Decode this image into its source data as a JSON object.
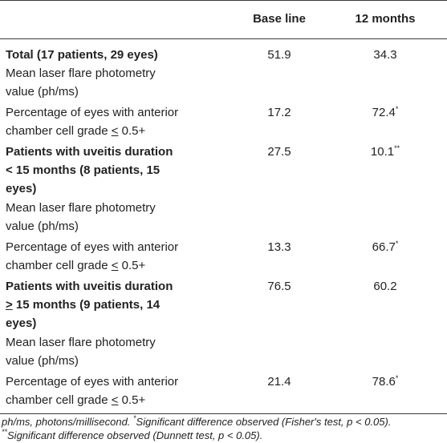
{
  "header": {
    "col1": "Base line",
    "col2": "12 months"
  },
  "rows": [
    {
      "label_lines": [
        "Total (17 patients, 29 eyes)"
      ],
      "bold": true,
      "v1": "51.9",
      "v2": "34.3"
    },
    {
      "label_lines": [
        "Mean laser flare photometry",
        "value (ph/ms)"
      ],
      "bold": false,
      "v1": "",
      "v2": ""
    },
    {
      "label_lines": [
        "Percentage of eyes with anterior",
        "chamber cell grade ≤ 0.5+"
      ],
      "bold": false,
      "v1": "17.2",
      "v2": "72.4",
      "v2_mark": "*"
    },
    {
      "label_lines": [
        "Patients with uveitis duration",
        "< 15 months (8 patients, 15",
        "eyes)"
      ],
      "bold": true,
      "v1": "27.5",
      "v2": "10.1",
      "v2_mark": "**"
    },
    {
      "label_lines": [
        "Mean laser flare photometry",
        "value (ph/ms)"
      ],
      "bold": false,
      "v1": "",
      "v2": ""
    },
    {
      "label_lines": [
        "Percentage of eyes with anterior",
        "chamber cell grade ≤ 0.5+"
      ],
      "bold": false,
      "v1": "13.3",
      "v2": "66.7",
      "v2_mark": "*"
    },
    {
      "label_lines": [
        "Patients with uveitis duration",
        "≥ 15 months (9 patients, 14",
        "eyes)"
      ],
      "bold": true,
      "v1": "76.5",
      "v2": "60.2"
    },
    {
      "label_lines": [
        "Mean laser flare photometry",
        "value (ph/ms)"
      ],
      "bold": false,
      "v1": "",
      "v2": ""
    },
    {
      "label_lines": [
        "Percentage of eyes with anterior",
        "chamber cell grade ≤ 0.5+"
      ],
      "bold": false,
      "v1": "21.4",
      "v2": "78.6",
      "v2_mark": "*"
    }
  ],
  "footnotes": {
    "line1_a": "ph/ms, photons/millisecond. ",
    "line1_mark": "*",
    "line1_b": "Significant difference observed (Fisher's test, p < 0.05).",
    "line2_mark": "**",
    "line2_b": "Significant difference observed (Dunnett test, p < 0.05)."
  }
}
